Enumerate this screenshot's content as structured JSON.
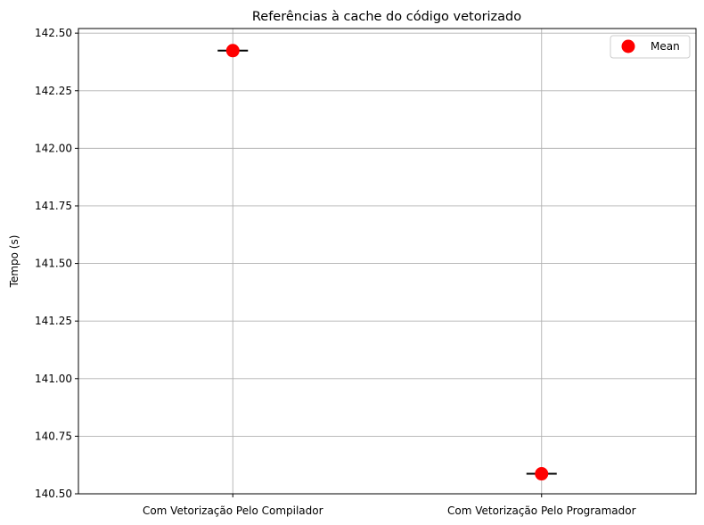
{
  "chart_data": {
    "type": "box",
    "title": "Referências à cache do código vetorizado",
    "xlabel": "",
    "ylabel": "Tempo  (s)",
    "categories": [
      "Com Vetorização Pelo Compilador",
      "Com Vetorização Pelo Programador"
    ],
    "medians": [
      142.424,
      140.587
    ],
    "means": [
      142.424,
      140.587
    ],
    "ylim": [
      140.5,
      142.52
    ],
    "yticks": [
      140.5,
      140.75,
      141.0,
      141.25,
      141.5,
      141.75,
      142.0,
      142.25,
      142.5
    ],
    "ytick_labels": [
      "140.50",
      "140.75",
      "141.00",
      "141.25",
      "141.50",
      "141.75",
      "142.00",
      "142.25",
      "142.50"
    ],
    "grid": true,
    "legend": {
      "position": "top-right",
      "entries": [
        "Mean"
      ]
    },
    "colors": {
      "mean": "#ff0000",
      "median": "#000000",
      "grid": "#b0b0b0"
    }
  }
}
